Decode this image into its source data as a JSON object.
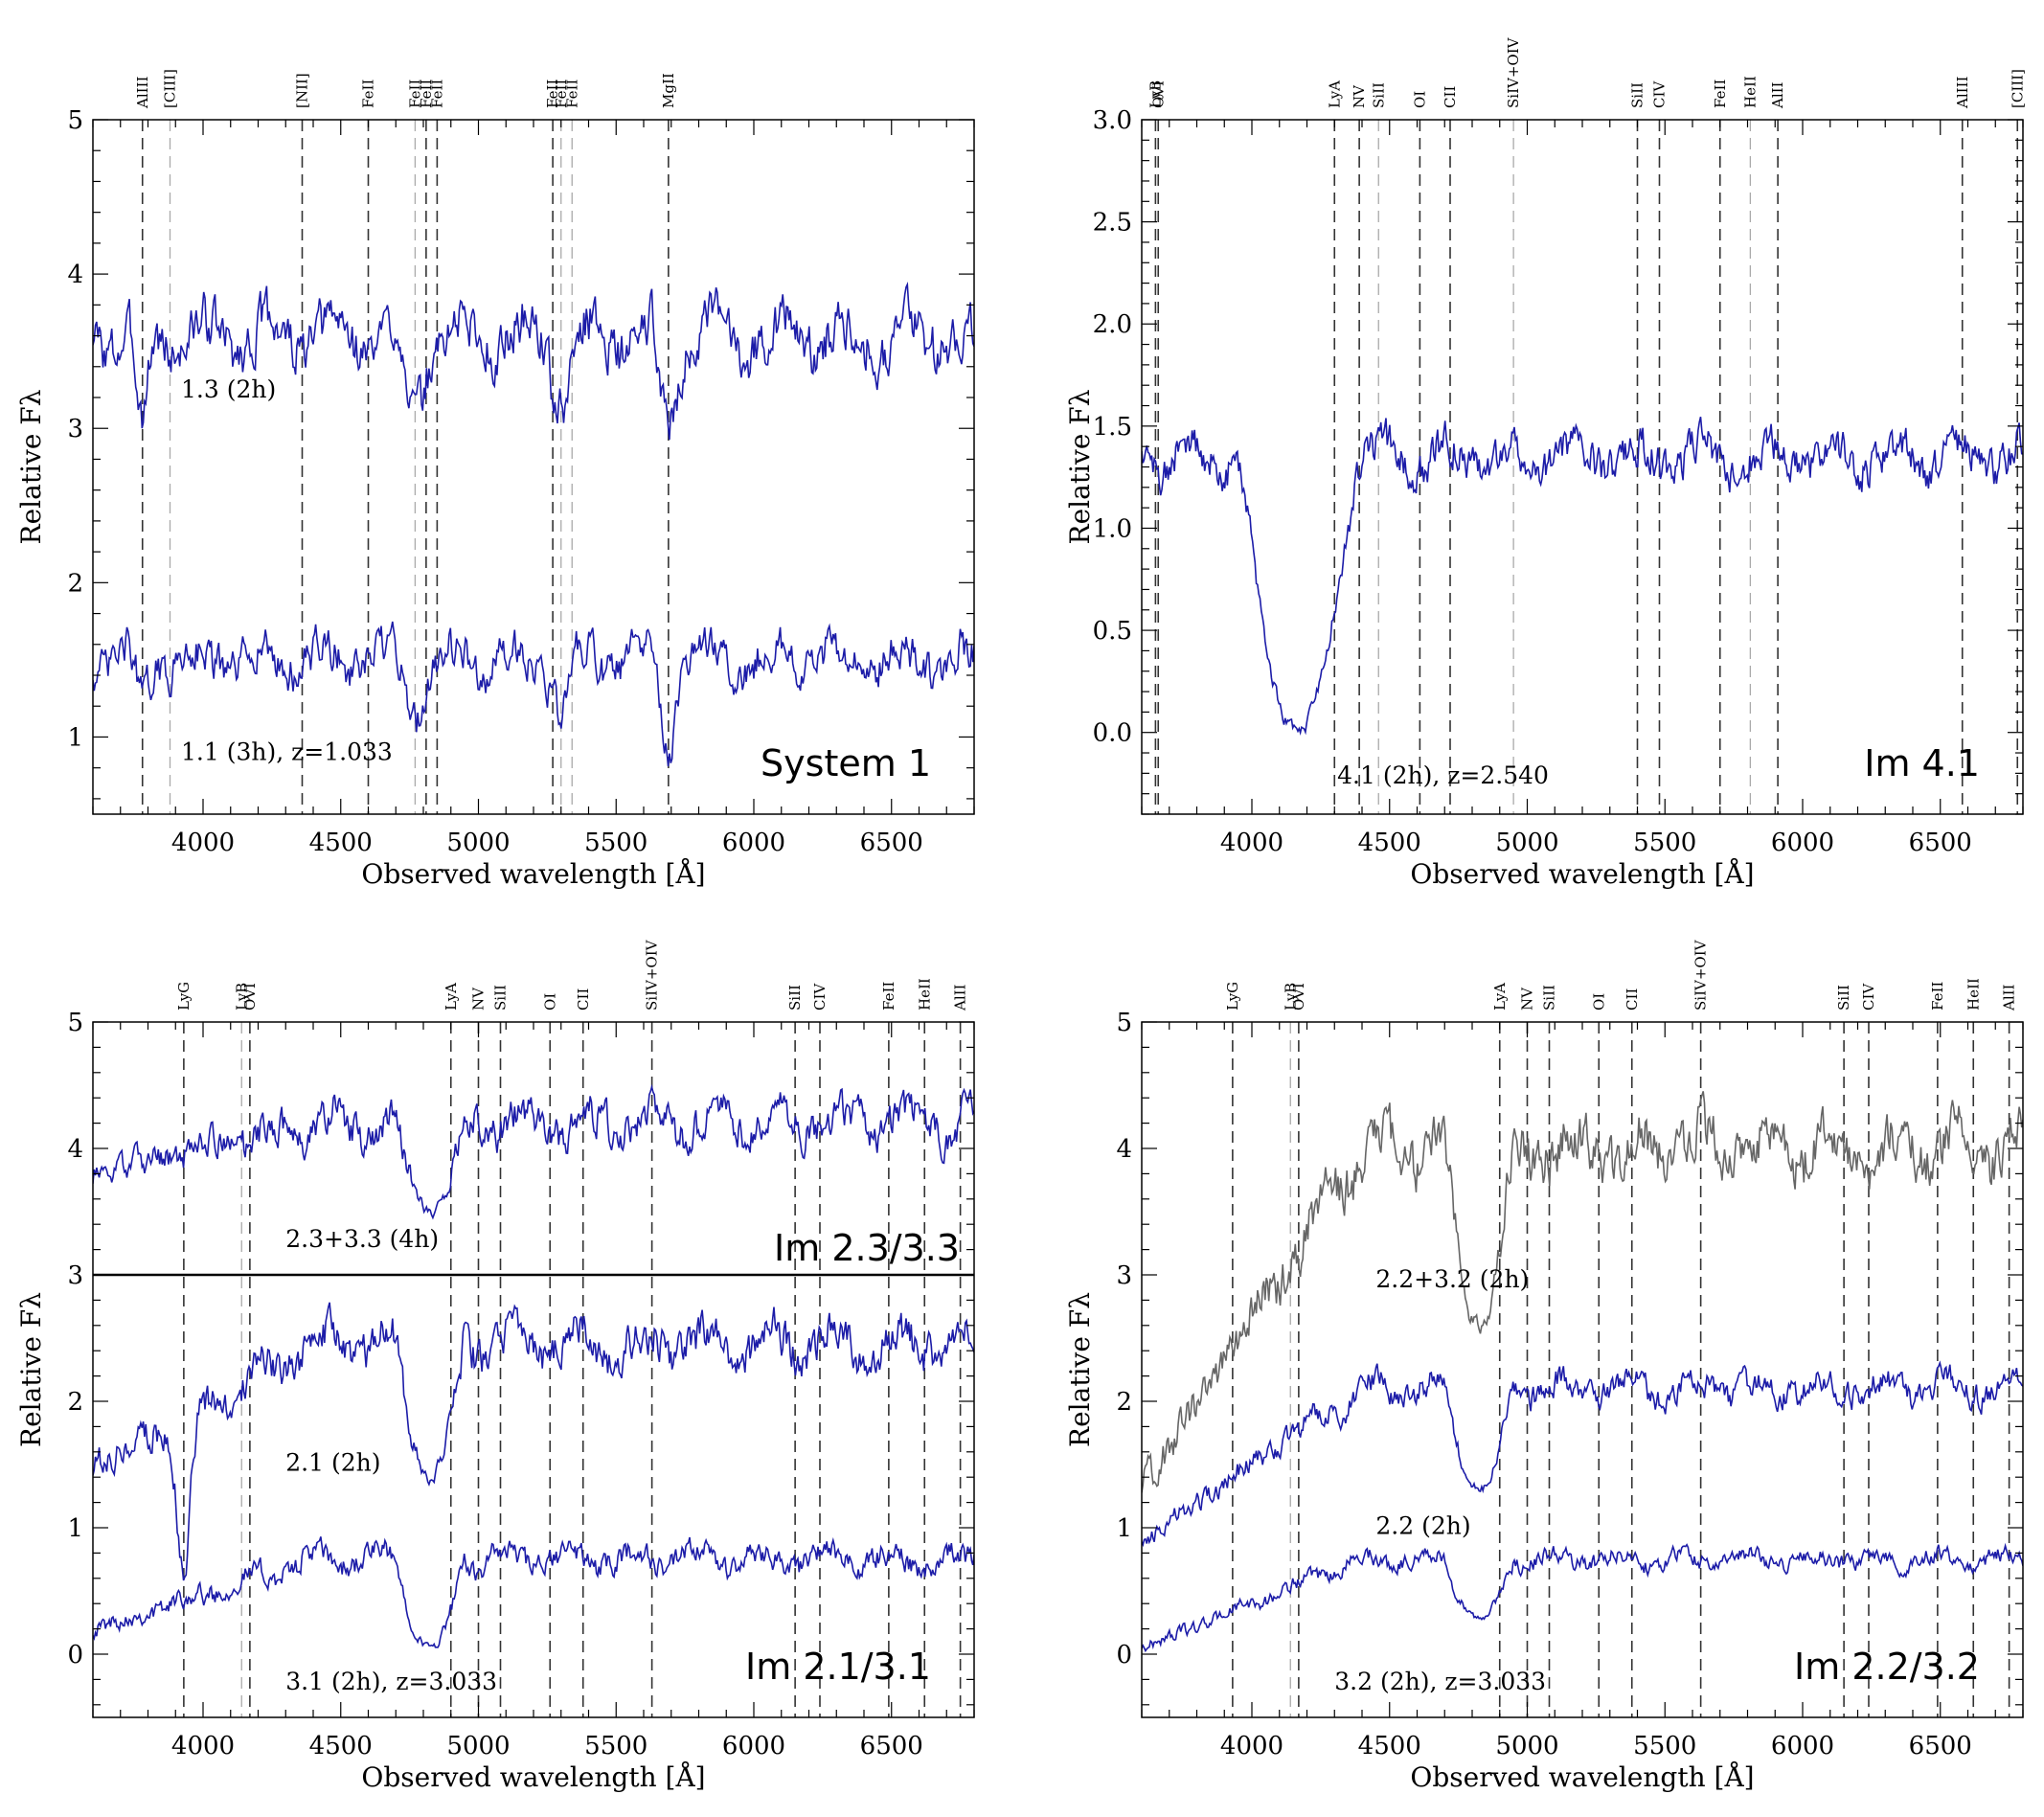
{
  "chart_data": [
    {
      "type": "line",
      "id": "p1",
      "panel_title": "System 1",
      "xlabel": "Observed wavelength [Å]",
      "ylabel": "Relative Fλ",
      "xlim": [
        3600,
        6800
      ],
      "ylim": [
        0.5,
        5
      ],
      "xticks": [
        4000,
        4500,
        5000,
        5500,
        6000,
        6500
      ],
      "yticks": [
        1,
        2,
        3,
        4,
        5
      ],
      "ytick_labels": [
        "1",
        "2",
        "3",
        "4",
        "5"
      ],
      "grid": false,
      "lines": [
        {
          "name": "AlIII",
          "x": 3780,
          "style": "dark"
        },
        {
          "name": "[CIII]",
          "x": 3880,
          "style": "light"
        },
        {
          "name": "[NII]",
          "x": 4360,
          "style": "dark"
        },
        {
          "name": "FeII",
          "x": 4600,
          "style": "dark"
        },
        {
          "name": "FeII",
          "x": 4770,
          "style": "light"
        },
        {
          "name": "FeII",
          "x": 4810,
          "style": "dark"
        },
        {
          "name": "FeII",
          "x": 4850,
          "style": "dark"
        },
        {
          "name": "FeII",
          "x": 5270,
          "style": "dark"
        },
        {
          "name": "FeII",
          "x": 5300,
          "style": "light"
        },
        {
          "name": "FeII",
          "x": 5340,
          "style": "light"
        },
        {
          "name": "MgII",
          "x": 5690,
          "style": "dark"
        }
      ],
      "series": [
        {
          "name": "1.3 (2h)",
          "label": "1.3 (2h)",
          "color": "#1c1ca8",
          "base": 3.6,
          "amp": 0.2,
          "dips": [
            [
              3780,
              0.6,
              20
            ],
            [
              4770,
              0.5,
              30
            ],
            [
              5300,
              0.4,
              30
            ],
            [
              5690,
              0.6,
              25
            ]
          ],
          "label_at": [
            3920,
            3.2
          ]
        },
        {
          "name": "1.1 (3h), z=1.033",
          "label": "1.1 (3h), z=1.033",
          "color": "#1c1ca8",
          "base": 1.5,
          "amp": 0.16,
          "dips": [
            [
              3780,
              0.3,
              20
            ],
            [
              4770,
              0.3,
              30
            ],
            [
              5300,
              0.3,
              30
            ],
            [
              5690,
              0.55,
              25
            ]
          ],
          "label_at": [
            3920,
            0.85
          ]
        }
      ]
    },
    {
      "type": "line",
      "id": "p2",
      "panel_title": "Im 4.1",
      "xlabel": "Observed wavelength [Å]",
      "ylabel": "Relative Fλ",
      "xlim": [
        3600,
        6800
      ],
      "ylim": [
        -0.4,
        3.0
      ],
      "xticks": [
        4000,
        4500,
        5000,
        5500,
        6000,
        6500
      ],
      "yticks": [
        0.0,
        0.5,
        1.0,
        1.5,
        2.0,
        2.5,
        3.0
      ],
      "ytick_labels": [
        "0.0",
        "0.5",
        "1.0",
        "1.5",
        "2.0",
        "2.5",
        "3.0"
      ],
      "grid": false,
      "lines": [
        {
          "name": "LyB",
          "x": 3650,
          "style": "dark"
        },
        {
          "name": "OVI",
          "x": 3660,
          "style": "dark"
        },
        {
          "name": "LyA",
          "x": 4300,
          "style": "dark"
        },
        {
          "name": "NV",
          "x": 4390,
          "style": "dark"
        },
        {
          "name": "SiII",
          "x": 4460,
          "style": "light"
        },
        {
          "name": "OI",
          "x": 4610,
          "style": "dark"
        },
        {
          "name": "CII",
          "x": 4720,
          "style": "dark"
        },
        {
          "name": "SiIV+OIV",
          "x": 4950,
          "style": "light"
        },
        {
          "name": "SiII",
          "x": 5400,
          "style": "dark"
        },
        {
          "name": "CIV",
          "x": 5480,
          "style": "dark"
        },
        {
          "name": "FeII",
          "x": 5700,
          "style": "dark"
        },
        {
          "name": "HeII",
          "x": 5810,
          "style": "light"
        },
        {
          "name": "AlII",
          "x": 5910,
          "style": "dark"
        },
        {
          "name": "AlIII",
          "x": 6580,
          "style": "dark"
        },
        {
          "name": "[CIII]",
          "x": 6780,
          "style": "dark"
        }
      ],
      "series": [
        {
          "name": "4.1 (2h), z=2.540",
          "label": "4.1 (2h), z=2.540",
          "color": "#1c1ca8",
          "base": 1.35,
          "amp": 0.12,
          "lya_trough": [
            3950,
            4380,
            0.0
          ],
          "label_at": [
            4310,
            -0.25
          ]
        }
      ]
    },
    {
      "type": "line",
      "id": "p3",
      "panel_title": "Im 2.1/3.1",
      "panel_title_upper": "Im 2.3/3.3",
      "xlabel": "Observed wavelength [Å]",
      "ylabel": "Relative Fλ",
      "xlim": [
        3600,
        6800
      ],
      "ylim": [
        -0.5,
        5
      ],
      "xticks": [
        4000,
        4500,
        5000,
        5500,
        6000,
        6500
      ],
      "yticks": [
        0,
        1,
        2,
        3,
        4,
        5
      ],
      "ytick_labels": [
        "0",
        "1",
        "2",
        "3",
        "4",
        "5"
      ],
      "separator_y": 3,
      "grid": false,
      "lines": [
        {
          "name": "LyG",
          "x": 3930,
          "style": "dark"
        },
        {
          "name": "LyB",
          "x": 4140,
          "style": "light"
        },
        {
          "name": "OVI",
          "x": 4170,
          "style": "dark"
        },
        {
          "name": "LyA",
          "x": 4900,
          "style": "dark"
        },
        {
          "name": "NV",
          "x": 5000,
          "style": "dark"
        },
        {
          "name": "SiII",
          "x": 5080,
          "style": "dark"
        },
        {
          "name": "OI",
          "x": 5260,
          "style": "dark"
        },
        {
          "name": "CII",
          "x": 5380,
          "style": "dark"
        },
        {
          "name": "SiIV+OIV",
          "x": 5630,
          "style": "dark"
        },
        {
          "name": "SiII",
          "x": 6150,
          "style": "dark"
        },
        {
          "name": "CIV",
          "x": 6240,
          "style": "dark"
        },
        {
          "name": "FeII",
          "x": 6490,
          "style": "dark"
        },
        {
          "name": "HeII",
          "x": 6620,
          "style": "dark"
        },
        {
          "name": "AlII",
          "x": 6750,
          "style": "dark"
        }
      ],
      "series": [
        {
          "name": "2.3+3.3 (4h)",
          "label": "2.3+3.3 (4h)",
          "color": "#1c1ca8",
          "base": 4.2,
          "amp": 0.18,
          "lya_trough": [
            4700,
            4950,
            3.5
          ],
          "low_start": 3.8,
          "label_at": [
            4300,
            3.22
          ]
        },
        {
          "name": "2.1 (2h)",
          "label": "2.1 (2h)",
          "color": "#1c1ca8",
          "base": 2.45,
          "amp": 0.2,
          "lya_trough": [
            4700,
            4950,
            1.4
          ],
          "low_start": 1.5,
          "dips": [
            [
              3930,
              1.2,
              25
            ]
          ],
          "label_at": [
            4300,
            1.45
          ]
        },
        {
          "name": "3.1 (2h), z=3.033",
          "label": "3.1 (2h), z=3.033",
          "color": "#1c1ca8",
          "base": 0.75,
          "amp": 0.12,
          "lya_trough": [
            4700,
            4950,
            0.05
          ],
          "low_start": 0.2,
          "label_at": [
            4300,
            -0.28
          ]
        }
      ]
    },
    {
      "type": "line",
      "id": "p4",
      "panel_title": "Im 2.2/3.2",
      "xlabel": "Observed wavelength [Å]",
      "ylabel": "Relative Fλ",
      "xlim": [
        3600,
        6800
      ],
      "ylim": [
        -0.5,
        5
      ],
      "xticks": [
        4000,
        4500,
        5000,
        5500,
        6000,
        6500
      ],
      "yticks": [
        0,
        1,
        2,
        3,
        4,
        5
      ],
      "ytick_labels": [
        "0",
        "1",
        "2",
        "3",
        "4",
        "5"
      ],
      "grid": false,
      "lines": [
        {
          "name": "LyG",
          "x": 3930,
          "style": "dark"
        },
        {
          "name": "LyB",
          "x": 4140,
          "style": "light"
        },
        {
          "name": "OVI",
          "x": 4170,
          "style": "dark"
        },
        {
          "name": "LyA",
          "x": 4900,
          "style": "dark"
        },
        {
          "name": "NV",
          "x": 5000,
          "style": "dark"
        },
        {
          "name": "SiII",
          "x": 5080,
          "style": "dark"
        },
        {
          "name": "OI",
          "x": 5260,
          "style": "dark"
        },
        {
          "name": "CII",
          "x": 5380,
          "style": "dark"
        },
        {
          "name": "SiIV+OIV",
          "x": 5630,
          "style": "dark"
        },
        {
          "name": "SiII",
          "x": 6150,
          "style": "dark"
        },
        {
          "name": "CIV",
          "x": 6240,
          "style": "dark"
        },
        {
          "name": "FeII",
          "x": 6490,
          "style": "dark"
        },
        {
          "name": "HeII",
          "x": 6620,
          "style": "dark"
        },
        {
          "name": "AlII",
          "x": 6750,
          "style": "dark"
        }
      ],
      "series": [
        {
          "name": "2.2+3.2 (2h)",
          "label": "2.2+3.2 (2h)",
          "color": "#666666",
          "base": 4.0,
          "amp": 0.25,
          "lya_trough": [
            4700,
            4950,
            2.6
          ],
          "low_start": 1.3,
          "label_at": [
            4450,
            2.9
          ]
        },
        {
          "name": "2.2 (2h)",
          "label": "2.2 (2h)",
          "color": "#1c1ca8",
          "base": 2.1,
          "amp": 0.13,
          "lya_trough": [
            4700,
            4950,
            1.3
          ],
          "low_start": 0.9,
          "label_at": [
            4450,
            0.95
          ]
        },
        {
          "name": "3.2 (2h), z=3.033",
          "label": "3.2 (2h), z=3.033",
          "color": "#1c1ca8",
          "base": 0.75,
          "amp": 0.08,
          "lya_trough": [
            4700,
            4950,
            0.28
          ],
          "low_start": 0.05,
          "label_at": [
            4300,
            -0.28
          ]
        }
      ]
    }
  ]
}
